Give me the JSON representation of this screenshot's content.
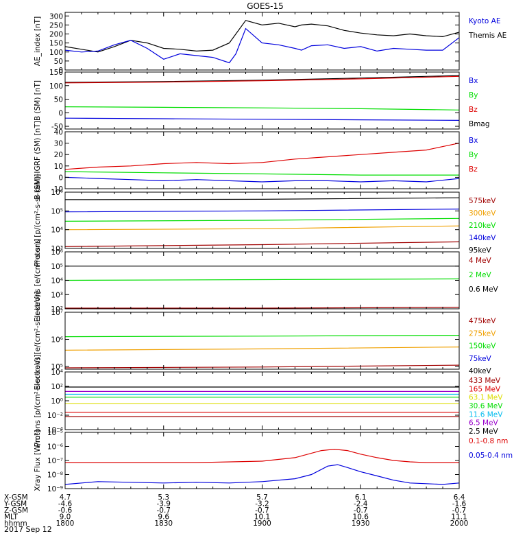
{
  "title": "GOES-15",
  "date_label": "2017 Sep 12",
  "colors": {
    "black": "#000000",
    "blue": "#0000dd",
    "green": "#00dd00",
    "red": "#dd0000",
    "darkred": "#a00000",
    "orange": "#f0a000",
    "yellow": "#dddd00",
    "cyan": "#00bbee",
    "purple": "#9900cc"
  },
  "ephemeris": {
    "row_labels": [
      "X-GSM",
      "Y-GSM",
      "Z-GSM",
      "MLT",
      "hhmm"
    ],
    "columns": [
      {
        "x": 0,
        "values": [
          "4.7",
          "-4.6",
          "-0.6",
          "9.0",
          "1800"
        ]
      },
      {
        "x": 30,
        "values": [
          "5.3",
          "-3.9",
          "-0.7",
          "9.6",
          "1830"
        ]
      },
      {
        "x": 60,
        "values": [
          "5.7",
          "-3.2",
          "-0.7",
          "10.1",
          "1900"
        ]
      },
      {
        "x": 90,
        "values": [
          "6.1",
          "-2.4",
          "-0.7",
          "10.6",
          "1930"
        ]
      },
      {
        "x": 120,
        "values": [
          "6.4",
          "-1.6",
          "-0.7",
          "11.1",
          "2000"
        ]
      }
    ]
  },
  "chart_data": [
    {
      "type": "line",
      "ylabel": "AE_index [nT]",
      "ylim": [
        0,
        320
      ],
      "log": false,
      "yticks": [
        "0",
        "50",
        "100",
        "150",
        "200",
        "250",
        "300"
      ],
      "ytick_values": [
        0,
        50,
        100,
        150,
        200,
        250,
        300
      ],
      "legend": [
        {
          "name": "Kyoto AE",
          "color": "#0000dd"
        },
        {
          "name": "Themis AE",
          "color": "#000000"
        }
      ],
      "series": [
        {
          "name": "Themis AE",
          "color": "#000000",
          "x": [
            0,
            5,
            10,
            15,
            20,
            25,
            30,
            35,
            40,
            45,
            50,
            55,
            60,
            65,
            70,
            72,
            75,
            80,
            85,
            90,
            95,
            100,
            105,
            110,
            115,
            120
          ],
          "y": [
            130,
            115,
            100,
            130,
            165,
            150,
            120,
            115,
            105,
            110,
            150,
            275,
            250,
            260,
            240,
            250,
            255,
            245,
            220,
            205,
            195,
            190,
            200,
            190,
            185,
            210
          ]
        },
        {
          "name": "Kyoto AE",
          "color": "#0000dd",
          "x": [
            0,
            5,
            10,
            15,
            20,
            25,
            30,
            35,
            40,
            45,
            50,
            52,
            55,
            60,
            65,
            70,
            72,
            75,
            80,
            85,
            90,
            95,
            100,
            105,
            110,
            115,
            120
          ],
          "y": [
            110,
            100,
            105,
            140,
            165,
            120,
            60,
            90,
            80,
            70,
            40,
            90,
            230,
            150,
            140,
            120,
            110,
            135,
            140,
            120,
            130,
            105,
            120,
            115,
            110,
            110,
            180
          ]
        }
      ]
    },
    {
      "type": "line",
      "ylabel": "B (SM) [nT]",
      "ylim": [
        -60,
        150
      ],
      "log": false,
      "yticks": [
        "-50",
        "0",
        "50",
        "100",
        "150"
      ],
      "ytick_values": [
        -50,
        0,
        50,
        100,
        150
      ],
      "legend": [
        {
          "name": "Bx",
          "color": "#0000dd"
        },
        {
          "name": "By",
          "color": "#00dd00"
        },
        {
          "name": "Bz",
          "color": "#dd0000"
        },
        {
          "name": "Bmag",
          "color": "#000000"
        }
      ],
      "series": [
        {
          "name": "Bmag",
          "color": "#000000",
          "x": [
            0,
            30,
            60,
            90,
            120
          ],
          "y": [
            112,
            115,
            120,
            128,
            137
          ]
        },
        {
          "name": "Bz",
          "color": "#dd0000",
          "x": [
            0,
            30,
            60,
            90,
            120
          ],
          "y": [
            110,
            113,
            118,
            125,
            134
          ]
        },
        {
          "name": "By",
          "color": "#00dd00",
          "x": [
            0,
            30,
            60,
            90,
            120
          ],
          "y": [
            22,
            20,
            18,
            15,
            10
          ]
        },
        {
          "name": "Bx",
          "color": "#0000dd",
          "x": [
            0,
            30,
            60,
            90,
            120
          ],
          "y": [
            -20,
            -22,
            -24,
            -26,
            -28
          ]
        }
      ]
    },
    {
      "type": "line",
      "ylabel": "B (SM)-IGRF (SM) [nT]",
      "ylim": [
        -10,
        40
      ],
      "log": false,
      "yticks": [
        "-10",
        "0",
        "10",
        "20",
        "30",
        "40"
      ],
      "ytick_values": [
        -10,
        0,
        10,
        20,
        30,
        40
      ],
      "legend": [
        {
          "name": "Bx",
          "color": "#0000dd"
        },
        {
          "name": "By",
          "color": "#00dd00"
        },
        {
          "name": "Bz",
          "color": "#dd0000"
        }
      ],
      "series": [
        {
          "name": "Bz",
          "color": "#dd0000",
          "x": [
            0,
            10,
            20,
            30,
            40,
            50,
            60,
            70,
            80,
            90,
            100,
            110,
            115,
            120
          ],
          "y": [
            7,
            9,
            10,
            12,
            13,
            12,
            13,
            16,
            18,
            20,
            22,
            24,
            27,
            30
          ]
        },
        {
          "name": "By",
          "color": "#00dd00",
          "x": [
            0,
            30,
            60,
            90,
            120
          ],
          "y": [
            5,
            4,
            3,
            2,
            2
          ]
        },
        {
          "name": "Bx",
          "color": "#0000dd",
          "x": [
            0,
            10,
            20,
            30,
            40,
            50,
            60,
            70,
            80,
            90,
            100,
            110,
            120
          ],
          "y": [
            0,
            -1,
            -2,
            -3,
            -2,
            -3,
            -4,
            -3,
            -3,
            -4,
            -3,
            -4,
            -1
          ]
        }
      ]
    },
    {
      "type": "line",
      "ylabel": "Protons [p/(cm²-s-sr-keV)]",
      "ylim": [
        3,
        6
      ],
      "log": true,
      "yticks": [
        "10³",
        "10⁴",
        "10⁵",
        "10⁶"
      ],
      "ytick_values": [
        3,
        4,
        5,
        6
      ],
      "legend": [
        {
          "name": "575keV",
          "color": "#a00000"
        },
        {
          "name": "300keV",
          "color": "#f0a000"
        },
        {
          "name": "210keV",
          "color": "#00dd00"
        },
        {
          "name": "140keV",
          "color": "#0000dd"
        },
        {
          "name": "95keV",
          "color": "#000000"
        }
      ],
      "series": [
        {
          "name": "95keV",
          "color": "#000000",
          "x": [
            0,
            60,
            120
          ],
          "y": [
            5.6,
            5.62,
            5.7
          ]
        },
        {
          "name": "140keV",
          "color": "#0000dd",
          "x": [
            0,
            60,
            120
          ],
          "y": [
            4.95,
            5.0,
            5.1
          ]
        },
        {
          "name": "210keV",
          "color": "#00dd00",
          "x": [
            0,
            60,
            120
          ],
          "y": [
            4.45,
            4.5,
            4.6
          ]
        },
        {
          "name": "300keV",
          "color": "#f0a000",
          "x": [
            0,
            60,
            120
          ],
          "y": [
            4.0,
            4.05,
            4.2
          ]
        },
        {
          "name": "575keV",
          "color": "#a00000",
          "x": [
            0,
            60,
            120
          ],
          "y": [
            3.1,
            3.2,
            3.35
          ]
        }
      ]
    },
    {
      "type": "line",
      "ylabel": "Electrons [e/(cm²-s-sr)]",
      "ylim": [
        2,
        6
      ],
      "log": true,
      "yticks": [
        "10²",
        "10³",
        "10⁴",
        "10⁵",
        "10⁶"
      ],
      "ytick_values": [
        2,
        3,
        4,
        5,
        6
      ],
      "legend": [
        {
          "name": "4 MeV",
          "color": "#a00000"
        },
        {
          "name": "2 MeV",
          "color": "#00dd00"
        },
        {
          "name": "0.6 MeV",
          "color": "#000000"
        }
      ],
      "series": [
        {
          "name": "0.6 MeV",
          "color": "#000000",
          "x": [
            0,
            60,
            120
          ],
          "y": [
            5.0,
            5.0,
            5.0
          ]
        },
        {
          "name": "2 MeV",
          "color": "#00dd00",
          "x": [
            0,
            60,
            120
          ],
          "y": [
            4.0,
            4.05,
            4.1
          ]
        },
        {
          "name": "4 MeV",
          "color": "#a00000",
          "x": [
            0,
            60,
            120
          ],
          "y": [
            2.05,
            2.05,
            2.1
          ]
        }
      ]
    },
    {
      "type": "line",
      "ylabel": "Electrons [e/(cm²-s-sr-keV)]",
      "ylim": [
        4.9,
        7
      ],
      "log": true,
      "yticks": [
        "10⁵",
        "10⁶",
        "10⁷"
      ],
      "ytick_values": [
        5,
        6,
        7
      ],
      "legend": [
        {
          "name": "475keV",
          "color": "#a00000"
        },
        {
          "name": "275keV",
          "color": "#f0a000"
        },
        {
          "name": "150keV",
          "color": "#00dd00"
        },
        {
          "name": "75keV",
          "color": "#0000dd"
        },
        {
          "name": "40keV",
          "color": "#000000"
        }
      ],
      "series": [
        {
          "name": "150keV",
          "color": "#00dd00",
          "x": [
            0,
            60,
            120
          ],
          "y": [
            6.1,
            6.12,
            6.15
          ]
        },
        {
          "name": "275keV",
          "color": "#f0a000",
          "x": [
            0,
            60,
            120
          ],
          "y": [
            5.6,
            5.65,
            5.72
          ]
        },
        {
          "name": "475keV",
          "color": "#a00000",
          "x": [
            0,
            60,
            120
          ],
          "y": [
            4.95,
            4.98,
            5.05
          ]
        }
      ]
    },
    {
      "type": "line",
      "ylabel": "Protons [p/(cm²-s-sr-keV)]",
      "ylim": [
        -4,
        4
      ],
      "log": true,
      "yticks": [
        "10⁻⁴",
        "10⁻²",
        "10⁰",
        "10²",
        "10⁴"
      ],
      "ytick_values": [
        -4,
        -2,
        0,
        2,
        4
      ],
      "legend": [
        {
          "name": "433 MeV",
          "color": "#a00000"
        },
        {
          "name": "165 MeV",
          "color": "#dd0000"
        },
        {
          "name": "63.1 MeV",
          "color": "#dddd00"
        },
        {
          "name": "30.6 MeV",
          "color": "#00dd00"
        },
        {
          "name": "11.6 MeV",
          "color": "#00bbee"
        },
        {
          "name": "6.5 MeV",
          "color": "#9900cc"
        },
        {
          "name": "2.5 MeV",
          "color": "#000000"
        }
      ],
      "series": [
        {
          "name": "2.5 MeV",
          "color": "#000000",
          "x": [
            0,
            120
          ],
          "y": [
            1.9,
            1.9
          ]
        },
        {
          "name": "6.5 MeV",
          "color": "#9900cc",
          "x": [
            0,
            120
          ],
          "y": [
            1.3,
            1.3
          ]
        },
        {
          "name": "11.6 MeV",
          "color": "#00bbee",
          "x": [
            0,
            120
          ],
          "y": [
            0.9,
            0.9
          ]
        },
        {
          "name": "30.6 MeV",
          "color": "#00dd00",
          "x": [
            0,
            120
          ],
          "y": [
            0.5,
            0.5
          ]
        },
        {
          "name": "63.1 MeV",
          "color": "#dddd00",
          "x": [
            0,
            120
          ],
          "y": [
            -0.4,
            -0.4
          ]
        },
        {
          "name": "165 MeV",
          "color": "#dd0000",
          "x": [
            0,
            120
          ],
          "y": [
            -1.6,
            -1.6
          ]
        },
        {
          "name": "433 MeV",
          "color": "#a00000",
          "x": [
            0,
            120
          ],
          "y": [
            -2.2,
            -2.2
          ]
        }
      ]
    },
    {
      "type": "line",
      "ylabel": "Xray Flux [W/m²]",
      "ylim": [
        -9,
        -5
      ],
      "log": true,
      "yticks": [
        "10⁻⁹",
        "10⁻⁸",
        "10⁻⁷",
        "10⁻⁶",
        "10⁻⁵"
      ],
      "ytick_values": [
        -9,
        -8,
        -7,
        -6,
        -5
      ],
      "legend": [
        {
          "name": "0.1-0.8 nm",
          "color": "#dd0000"
        },
        {
          "name": "0.05-0.4 nm",
          "color": "#0000dd"
        }
      ],
      "series": [
        {
          "name": "0.1-0.8 nm",
          "color": "#dd0000",
          "x": [
            0,
            20,
            40,
            60,
            70,
            78,
            82,
            86,
            90,
            95,
            100,
            105,
            110,
            120
          ],
          "y": [
            -7.15,
            -7.15,
            -7.15,
            -7.05,
            -6.8,
            -6.3,
            -6.2,
            -6.3,
            -6.55,
            -6.8,
            -7.0,
            -7.1,
            -7.15,
            -7.15
          ]
        },
        {
          "name": "0.05-0.4 nm",
          "color": "#0000dd",
          "x": [
            0,
            10,
            20,
            30,
            40,
            50,
            60,
            70,
            75,
            80,
            83,
            86,
            90,
            95,
            100,
            105,
            110,
            115,
            120
          ],
          "y": [
            -8.7,
            -8.5,
            -8.55,
            -8.6,
            -8.55,
            -8.6,
            -8.5,
            -8.3,
            -8.0,
            -7.4,
            -7.3,
            -7.5,
            -7.8,
            -8.1,
            -8.4,
            -8.6,
            -8.65,
            -8.7,
            -8.6
          ]
        }
      ]
    }
  ]
}
